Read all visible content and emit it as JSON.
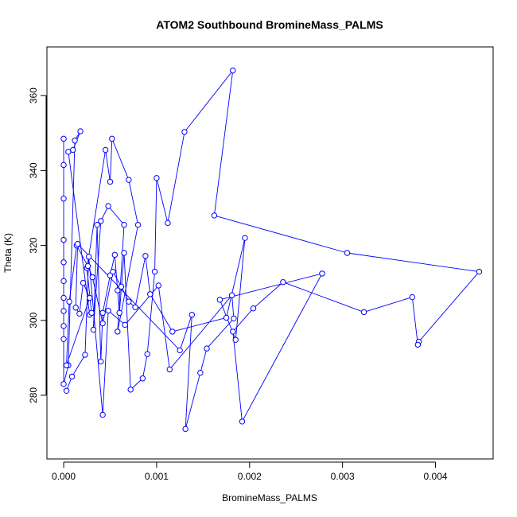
{
  "chart_data": {
    "type": "line",
    "title": "ATOM2 Southbound BromineMass_PALMS",
    "xlabel": "BromineMass_PALMS",
    "ylabel": "Theta (K)",
    "xlim": [
      -0.00018,
      0.00462
    ],
    "ylim": [
      263,
      373
    ],
    "x_ticks": [
      0.0,
      0.001,
      0.002,
      0.003,
      0.004
    ],
    "x_tick_labels": [
      "0.000",
      "0.001",
      "0.002",
      "0.003",
      "0.004"
    ],
    "y_ticks": [
      280,
      300,
      320,
      340,
      360
    ],
    "y_tick_labels": [
      "280",
      "300",
      "320",
      "340",
      "360"
    ],
    "grid": false,
    "marker": "open-circle",
    "colors": {
      "series": "#0000ff",
      "axis": "#000000"
    },
    "series": [
      {
        "x": [
          0.0,
          0.0,
          0.0,
          0.0,
          0.0,
          0.0,
          0.0,
          0.0,
          0.0,
          0.0,
          0.0,
          5e-05,
          0.00012,
          0.00018,
          0.0001,
          5e-05,
          0.00028,
          0.0003,
          0.00025,
          0.00045,
          0.0005,
          0.00052,
          0.0007,
          0.0008,
          0.00058,
          0.00065,
          0.00048,
          0.0004,
          0.00032,
          0.00036,
          0.0004,
          0.00042,
          0.0005,
          0.00055,
          0.00058,
          0.0006,
          0.00065,
          0.00072,
          0.00085,
          0.0009,
          0.00098,
          0.001,
          0.00112,
          0.0013,
          0.00182,
          0.00162,
          0.00305,
          0.00447,
          0.00382,
          0.00381,
          0.00375,
          0.00323,
          0.00236,
          0.00204,
          0.00182,
          0.00192,
          0.00278,
          0.00168,
          0.00185,
          0.00195,
          0.00175,
          0.00117,
          0.00093,
          0.00088,
          0.00077,
          0.0007,
          0.00062,
          0.00053,
          0.00042,
          0.00031,
          0.00026,
          0.00014,
          6e-05,
          3e-05,
          0.00028,
          0.00021,
          0.00017,
          0.00013,
          0.00015,
          0.00125,
          0.00138,
          0.00131,
          0.00147,
          0.00154,
          0.00183,
          0.00181,
          0.00114,
          0.00102,
          0.00066,
          0.00048,
          0.00042,
          0.00027,
          0.00023,
          9e-05,
          3e-05
        ],
        "y": [
          348.5,
          341.5,
          332.5,
          321.5,
          315.5,
          310.5,
          306.0,
          302.5,
          298.5,
          295.0,
          283.0,
          288.0,
          348.0,
          350.5,
          345.5,
          345.0,
          301.5,
          302.0,
          314.0,
          345.5,
          337.0,
          348.5,
          337.5,
          325.5,
          297.0,
          325.5,
          330.5,
          326.5,
          297.5,
          325.5,
          289.0,
          302.0,
          312.0,
          317.5,
          308.0,
          302.0,
          318.0,
          281.5,
          284.5,
          291.0,
          313.0,
          338.0,
          326.0,
          350.3,
          366.7,
          328.0,
          318.0,
          313.0,
          294.3,
          293.5,
          306.2,
          302.2,
          310.2,
          303.2,
          297.0,
          273.0,
          312.5,
          305.5,
          294.8,
          322.0,
          300.7,
          297.0,
          307.0,
          317.2,
          303.5,
          305.0,
          309.0,
          313.0,
          299.2,
          311.5,
          314.5,
          320.0,
          305.0,
          288.0,
          306.0,
          310.0,
          301.8,
          303.4,
          320.4,
          292.0,
          301.5,
          271.0,
          286.0,
          292.5,
          300.5,
          306.7,
          286.9,
          309.3,
          298.8,
          302.6,
          274.8,
          317.0,
          290.8,
          285.0,
          281.2
        ]
      }
    ]
  }
}
